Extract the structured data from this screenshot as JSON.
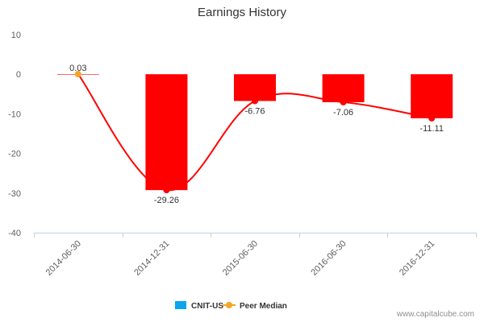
{
  "chart_data": {
    "type": "bar",
    "title": "Earnings History",
    "categories": [
      "2014-06-30",
      "2014-12-31",
      "2015-06-30",
      "2016-06-30",
      "2016-12-31"
    ],
    "series": [
      {
        "name": "CNIT-US",
        "type": "bar",
        "values": [
          0.03,
          -29.26,
          -6.76,
          -7.06,
          -11.11
        ],
        "color": "#ff0000",
        "legend_color": "#0aa5ea",
        "data_labels": [
          "0.03",
          "-29.26",
          "-6.76",
          "-7.06",
          "-11.11"
        ]
      },
      {
        "name": "Peer Median",
        "type": "line",
        "values": [
          0.03,
          -29.26,
          -6.76,
          -7.06,
          -11.11
        ],
        "color": "#ff0000",
        "marker_color": "#ff0000",
        "first_marker_color": "#f5a623",
        "legend_color": "#f5a623"
      }
    ],
    "ylim": [
      -40,
      10
    ],
    "yticks": [
      10,
      0,
      -10,
      -20,
      -30,
      -40
    ],
    "grid": false,
    "legend_position": "bottom"
  },
  "credit": "www.capitalcube.com"
}
